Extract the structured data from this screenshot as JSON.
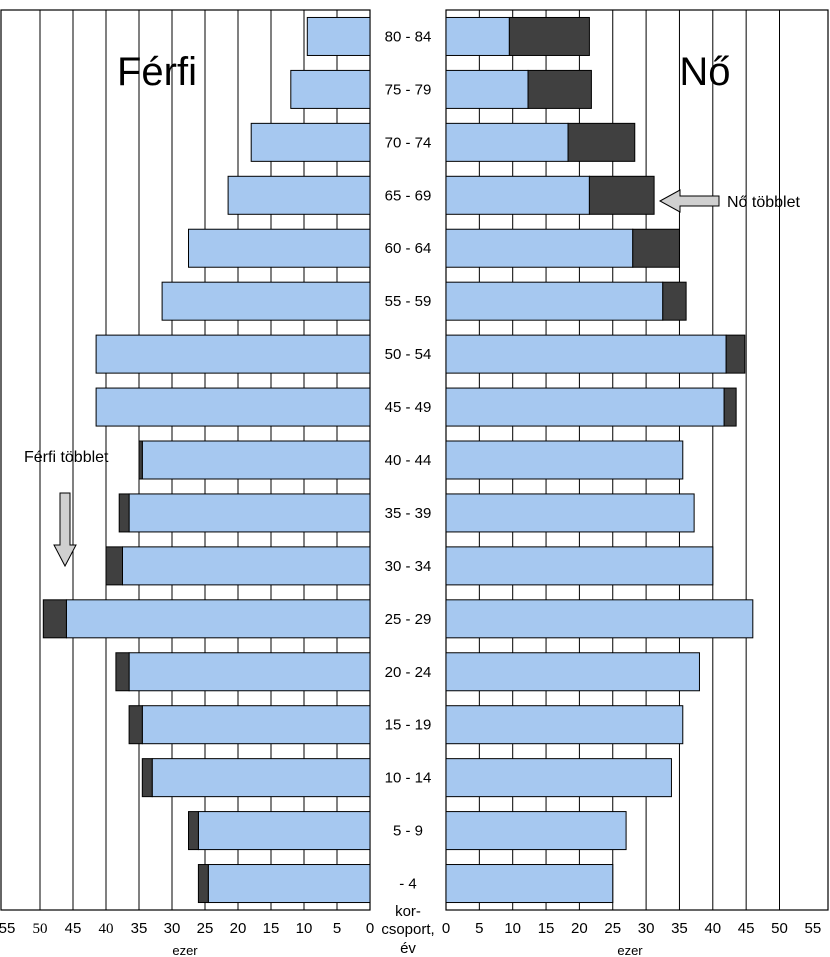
{
  "chart_data": {
    "type": "bar",
    "subtype": "population-pyramid",
    "categories": [
      "80 - 84",
      "75 - 79",
      "70 - 74",
      "65 - 69",
      "60 - 64",
      "55 - 59",
      "50 - 54",
      "45 - 49",
      "40 - 44",
      "35 - 39",
      "30 - 34",
      "25 - 29",
      "20 - 24",
      "15 - 19",
      "10 - 14",
      "5 - 9",
      "- 4"
    ],
    "left_panel": {
      "title": "Férfi",
      "base": [
        9.5,
        12,
        18,
        21.5,
        27.5,
        31.5,
        41.5,
        41.5,
        34.5,
        36.5,
        37.5,
        46,
        36.5,
        34.5,
        33,
        26,
        24.5
      ],
      "excess": [
        0,
        0,
        0,
        0,
        0,
        0,
        0,
        0,
        0.5,
        1.5,
        2.5,
        3.5,
        2,
        2,
        1.5,
        1.5,
        1.5
      ]
    },
    "right_panel": {
      "title": "Nő",
      "base": [
        9.5,
        12.3,
        18.3,
        21.5,
        28,
        32.5,
        42,
        41.7,
        35.5,
        37.2,
        40,
        46,
        38,
        35.5,
        33.8,
        27,
        25
      ],
      "excess": [
        12,
        9.5,
        10,
        9.7,
        7,
        3.5,
        2.8,
        1.8,
        0,
        0,
        0,
        0,
        0,
        0,
        0,
        0,
        0
      ]
    },
    "xlim": [
      0,
      55
    ],
    "left_ticks": [
      "55",
      "50",
      "45",
      "40",
      "35",
      "30",
      "25",
      "20",
      "15",
      "10",
      "5",
      "0"
    ],
    "right_ticks": [
      "0",
      "5",
      "10",
      "15",
      "20",
      "25",
      "30",
      "35",
      "40",
      "45",
      "50",
      "55"
    ],
    "left_unit": "ezer",
    "right_unit": "ezer",
    "center_axis_label": [
      "kor-",
      "csoport,",
      "év"
    ],
    "annotations": {
      "male_excess": "Férfi többlet",
      "female_excess": "Nő többlet"
    },
    "colors": {
      "base": "#a6c8f0",
      "excess": "#404040",
      "arrow": "#d0d0d0"
    },
    "grid": true
  }
}
